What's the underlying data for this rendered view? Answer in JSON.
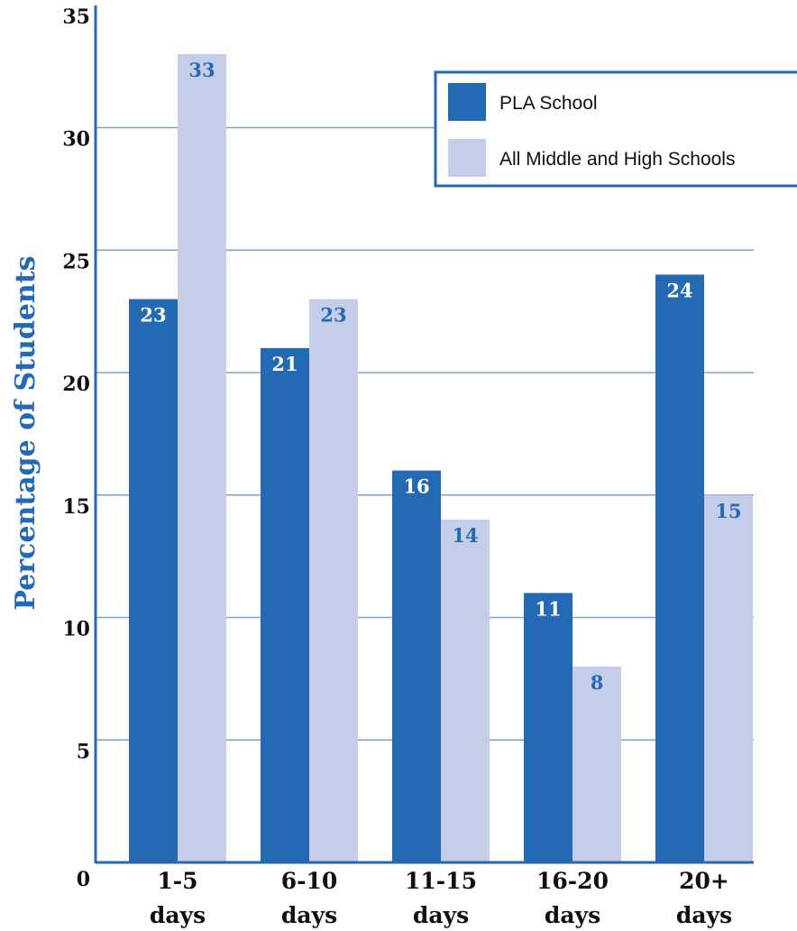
{
  "chart_data": {
    "type": "bar",
    "title": "",
    "xlabel": "",
    "ylabel": "Percentage of Students",
    "ylim": [
      0,
      35
    ],
    "yticks": [
      0,
      5,
      10,
      15,
      20,
      25,
      30,
      35
    ],
    "grid": true,
    "legend_position": "top-right",
    "categories": [
      [
        "1-5",
        "days"
      ],
      [
        "6-10",
        "days"
      ],
      [
        "11-15",
        "days"
      ],
      [
        "16-20",
        "days"
      ],
      [
        "20+",
        "days"
      ]
    ],
    "series": [
      {
        "name": "PLA School",
        "values": [
          23,
          21,
          16,
          11,
          24
        ],
        "color": "#2469b3",
        "label_color": "#ffffff"
      },
      {
        "name": "All Middle and High Schools",
        "values": [
          33,
          23,
          14,
          8,
          15
        ],
        "color": "#c5cde8",
        "label_color": "#2469b3"
      }
    ],
    "colors": {
      "axis": "#2469b3",
      "grid": "#7f9fd0",
      "ylabel": "#2469b3"
    }
  }
}
